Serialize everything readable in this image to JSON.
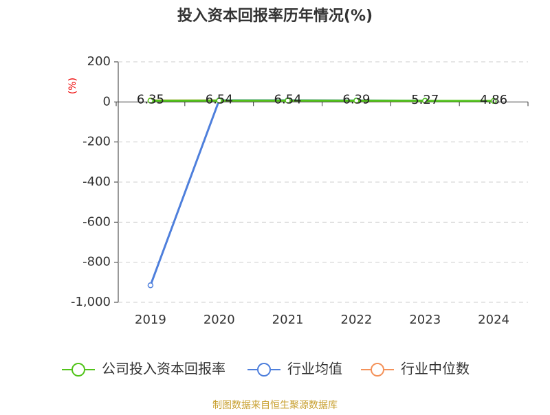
{
  "chart_data": {
    "type": "line",
    "title": "投入资本回报率历年情况(%)",
    "y_label": "(%)",
    "source": "制图数据来自恒生聚源数据库",
    "categories": [
      "2019",
      "2020",
      "2021",
      "2022",
      "2023",
      "2024"
    ],
    "series": [
      {
        "name": "公司投入资本回报率",
        "color": "#52c41a",
        "values": [
          6.35,
          6.54,
          6.54,
          6.39,
          5.27,
          4.86
        ],
        "show_labels": true
      },
      {
        "name": "行业均值",
        "color": "#4e7fdc",
        "values": [
          -915,
          8,
          8,
          7,
          6,
          null
        ],
        "show_labels": false
      },
      {
        "name": "行业中位数",
        "color": "#f4925a",
        "values": [
          7,
          7,
          7,
          6,
          5,
          null
        ],
        "show_labels": false
      }
    ],
    "ylim": [
      -1000,
      200
    ],
    "yticks": [
      {
        "value": -1000,
        "label": "-1,000"
      },
      -800,
      -600,
      -400,
      -200,
      0,
      200
    ],
    "grid": true
  }
}
